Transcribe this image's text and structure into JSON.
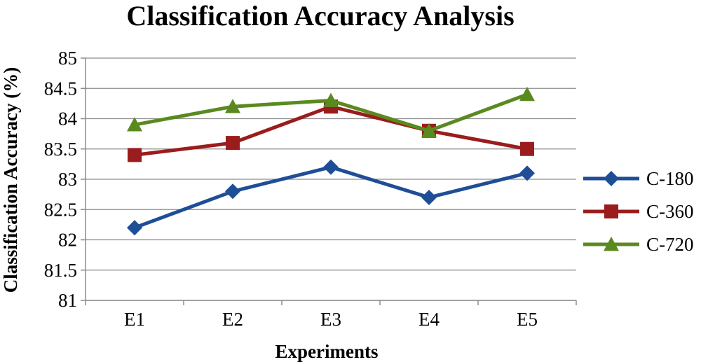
{
  "chart_data": {
    "type": "line",
    "title": "Classification Accuracy Analysis",
    "xlabel": "Experiments",
    "ylabel": "Classification Accuracy (%)",
    "categories": [
      "E1",
      "E2",
      "E3",
      "E4",
      "E5"
    ],
    "ylim": [
      81,
      85
    ],
    "yticks": [
      "81",
      "81.5",
      "82",
      "82.5",
      "83",
      "83.5",
      "84",
      "84.5",
      "85"
    ],
    "grid": true,
    "legend": "right",
    "series": [
      {
        "name": "C-180",
        "values": [
          82.2,
          82.8,
          83.2,
          82.7,
          83.1
        ],
        "color": "#1f4e96",
        "marker": "diamond"
      },
      {
        "name": "C-360",
        "values": [
          83.4,
          83.6,
          84.2,
          83.8,
          83.5
        ],
        "color": "#9b1c1c",
        "marker": "square"
      },
      {
        "name": "C-720",
        "values": [
          83.9,
          84.2,
          84.3,
          83.8,
          84.4
        ],
        "color": "#5a8a1f",
        "marker": "triangle"
      }
    ]
  }
}
